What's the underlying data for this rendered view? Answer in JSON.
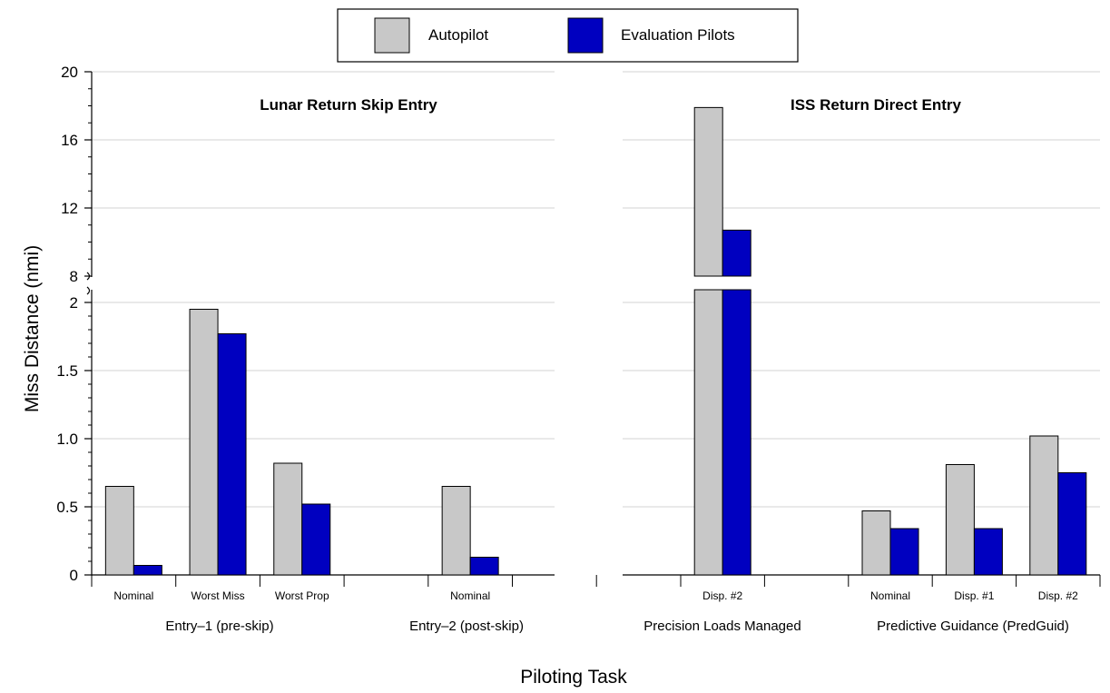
{
  "chart_data": {
    "type": "bar",
    "xlabel": "Piloting Task",
    "ylabel": "Miss Distance (nmi)",
    "legend": {
      "position": "top-center",
      "entries": [
        "Autopilot",
        "Evaluation Pilots"
      ]
    },
    "colors": {
      "Autopilot": "#c8c8c8",
      "Evaluation Pilots": "#0000c0"
    },
    "grid": true,
    "y_axis": {
      "broken": true,
      "lower_range": [
        0,
        2
      ],
      "upper_range": [
        8,
        20
      ],
      "lower_ticks": [
        "0",
        "0.5",
        "1.0",
        "1.5",
        "2"
      ],
      "upper_ticks": [
        "8",
        "12",
        "16",
        "20"
      ]
    },
    "panels": [
      {
        "title": "Lunar Return Skip Entry",
        "categories": [
          "Nominal",
          "Worst Miss",
          "Worst Prop",
          "",
          "Nominal",
          ""
        ],
        "groups": [
          {
            "label": "Entry–1 (pre-skip)"
          },
          {
            "label": "Entry–2 (post-skip)"
          }
        ],
        "series": [
          {
            "name": "Autopilot",
            "values": [
              0.65,
              1.95,
              0.82,
              null,
              0.65,
              null
            ]
          },
          {
            "name": "Evaluation Pilots",
            "values": [
              0.07,
              1.77,
              0.52,
              null,
              0.13,
              null
            ]
          }
        ]
      },
      {
        "title": "ISS Return Direct Entry",
        "categories": [
          "Disp. #2",
          "",
          "Nominal",
          "Disp. #1",
          "Disp. #2"
        ],
        "groups": [
          {
            "label": "Precision Loads Managed"
          },
          {
            "label": "Predictive Guidance (PredGuid)"
          }
        ],
        "series": [
          {
            "name": "Autopilot",
            "values": [
              17.9,
              null,
              0.47,
              0.81,
              1.02
            ]
          },
          {
            "name": "Evaluation Pilots",
            "values": [
              10.7,
              null,
              0.34,
              0.34,
              0.75
            ]
          }
        ]
      }
    ]
  }
}
